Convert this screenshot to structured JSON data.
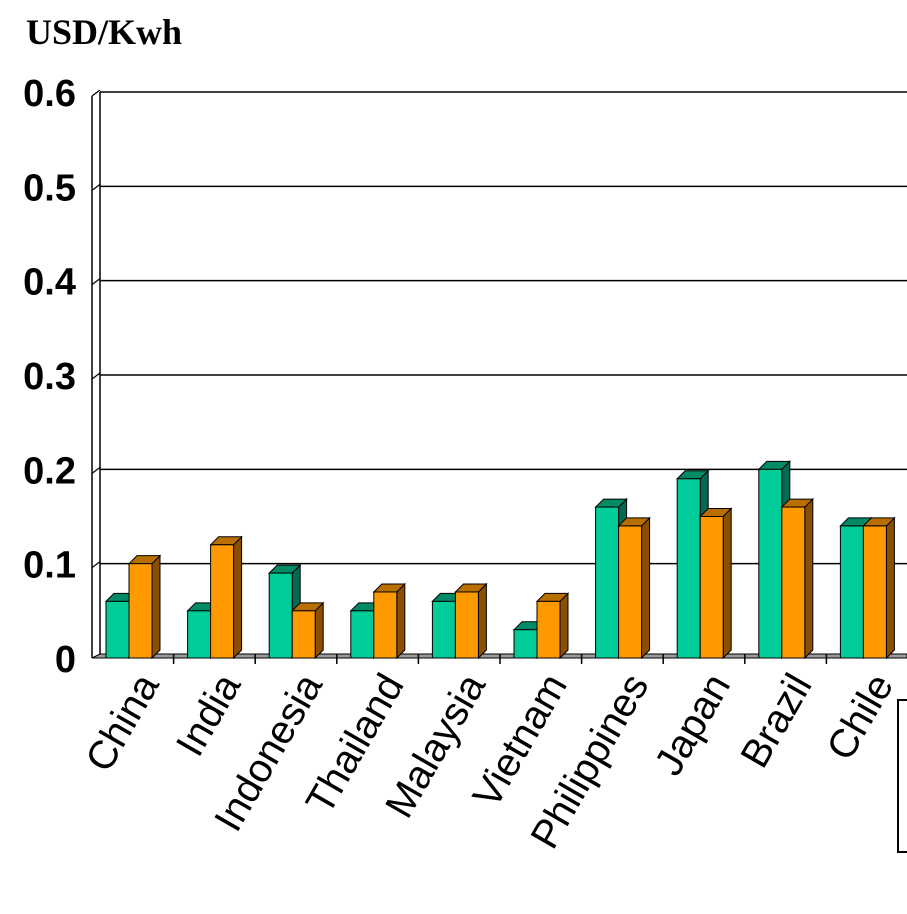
{
  "chart_data": {
    "type": "bar",
    "title": "",
    "ylabel": "USD/Kwh",
    "xlabel": "",
    "ylim": [
      0,
      0.6
    ],
    "yticks": [
      "0",
      "0.1",
      "0.2",
      "0.3",
      "0.4",
      "0.5",
      "0.6"
    ],
    "grid": true,
    "legend": "right, cut off",
    "categories": [
      "China",
      "India",
      "Indonesia",
      "Thailand",
      "Malaysia",
      "Vietnam",
      "Philippines",
      "Japan",
      "Brazil",
      "Chile"
    ],
    "series": [
      {
        "values": [
          0.06,
          0.05,
          0.09,
          0.05,
          0.06,
          0.03,
          0.16,
          0.19,
          0.2,
          0.14
        ]
      },
      {
        "values": [
          0.1,
          0.12,
          0.05,
          0.07,
          0.07,
          0.06,
          0.14,
          0.15,
          0.16,
          0.14
        ]
      }
    ],
    "colors": {
      "series": [
        "#00cc99",
        "#ff9900"
      ],
      "series_side": [
        "#006b52",
        "#8a4f00"
      ],
      "series_top": [
        "#008a66",
        "#b86e00"
      ]
    }
  }
}
